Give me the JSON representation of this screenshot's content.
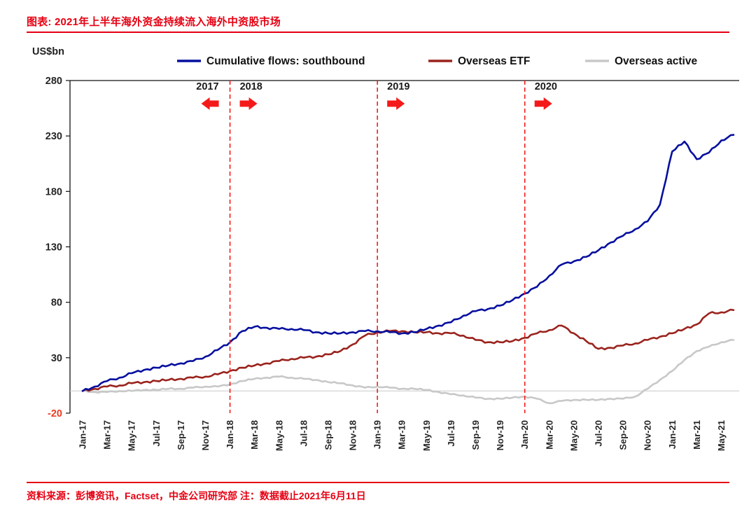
{
  "header": {
    "title": "图表: 2021年上半年海外资金持续流入海外中资股市场"
  },
  "footer": {
    "source": "资料来源：彭博资讯，Factset，中金公司研究部   注：数据截止2021年6月11日"
  },
  "chart_data": {
    "type": "line",
    "title": "2021年上半年海外资金持续流入海外中资股市场",
    "unit_label": "US$bn",
    "ylim": [
      -20,
      280
    ],
    "y_ticks": [
      280,
      230,
      180,
      130,
      80,
      30,
      -20
    ],
    "grid": "zero-line-only",
    "legend_position": "top",
    "months": [
      "Jan-17",
      "Feb-17",
      "Mar-17",
      "Apr-17",
      "May-17",
      "Jun-17",
      "Jul-17",
      "Aug-17",
      "Sep-17",
      "Oct-17",
      "Nov-17",
      "Dec-17",
      "Jan-18",
      "Feb-18",
      "Mar-18",
      "Apr-18",
      "May-18",
      "Jun-18",
      "Jul-18",
      "Aug-18",
      "Sep-18",
      "Oct-18",
      "Nov-18",
      "Dec-18",
      "Jan-19",
      "Feb-19",
      "Mar-19",
      "Apr-19",
      "May-19",
      "Jun-19",
      "Jul-19",
      "Aug-19",
      "Sep-19",
      "Oct-19",
      "Nov-19",
      "Dec-19",
      "Jan-20",
      "Feb-20",
      "Mar-20",
      "Apr-20",
      "May-20",
      "Jun-20",
      "Jul-20",
      "Aug-20",
      "Sep-20",
      "Oct-20",
      "Nov-20",
      "Dec-20",
      "Jan-21",
      "Feb-21",
      "Mar-21",
      "Apr-21",
      "May-21",
      "Jun-21"
    ],
    "x_tick_labels": [
      "Jan-17",
      "Mar-17",
      "May-17",
      "Jul-17",
      "Sep-17",
      "Nov-17",
      "Jan-18",
      "Mar-18",
      "May-18",
      "Jul-18",
      "Sep-18",
      "Nov-18",
      "Jan-19",
      "Mar-19",
      "May-19",
      "Jul-19",
      "Sep-19",
      "Nov-19",
      "Jan-20",
      "Mar-20",
      "May-20",
      "Jul-20",
      "Sep-20",
      "Nov-20",
      "Jan-21",
      "Mar-21",
      "May-21"
    ],
    "series": [
      {
        "name": "Cumulative flows: southbound",
        "color": "#050f9e",
        "values": [
          0,
          4,
          9,
          12,
          16,
          19,
          21,
          23,
          25,
          27,
          31,
          37,
          44,
          54,
          58,
          57,
          56,
          56,
          55,
          53,
          52,
          52,
          53,
          54,
          54,
          53,
          52,
          53,
          56,
          59,
          62,
          68,
          72,
          74,
          77,
          82,
          88,
          94,
          104,
          114,
          117,
          121,
          127,
          134,
          140,
          146,
          153,
          168,
          216,
          225,
          209,
          215,
          226,
          231
        ]
      },
      {
        "name": "Overseas ETF",
        "color": "#9a231d",
        "values": [
          0,
          2,
          4,
          5,
          7,
          8,
          9,
          10,
          11,
          12,
          13,
          15,
          18,
          21,
          23,
          25,
          27,
          29,
          30,
          31,
          33,
          36,
          42,
          50,
          53,
          54,
          54,
          53,
          53,
          52,
          52,
          50,
          46,
          44,
          44,
          45,
          48,
          52,
          55,
          59,
          52,
          45,
          38,
          39,
          41,
          43,
          46,
          49,
          52,
          56,
          60,
          70,
          71,
          73
        ]
      },
      {
        "name": "Overseas active",
        "color": "#c8c8c8",
        "values": [
          0,
          -1,
          -1,
          0,
          0,
          1,
          1,
          2,
          2,
          3,
          4,
          4,
          6,
          9,
          11,
          12,
          13,
          12,
          11,
          10,
          8,
          7,
          5,
          3,
          4,
          3,
          2,
          2,
          1,
          -1,
          -3,
          -4,
          -6,
          -7,
          -7,
          -6,
          -5,
          -7,
          -11,
          -9,
          -8,
          -8,
          -8,
          -7,
          -7,
          -5,
          2,
          10,
          18,
          28,
          36,
          40,
          44,
          46
        ]
      }
    ],
    "event_lines": [
      {
        "month": "Jan-18",
        "index": 12
      },
      {
        "month": "Jan-19",
        "index": 24
      },
      {
        "month": "Jan-20",
        "index": 36
      }
    ],
    "year_annotations": [
      {
        "label": "2017",
        "anchor": "Jan-18",
        "side": "left",
        "arrow": "left"
      },
      {
        "label": "2018",
        "anchor": "Jan-18",
        "side": "right",
        "arrow": "right"
      },
      {
        "label": "2019",
        "anchor": "Jan-19",
        "side": "right",
        "arrow": "right"
      },
      {
        "label": "2020",
        "anchor": "Jan-20",
        "side": "right",
        "arrow": "right"
      }
    ],
    "colors": {
      "accent_red": "#e60012",
      "dashed_line": "#f51a1a",
      "arrow": "#f51a1a",
      "axis": "#111111",
      "tick_text": "#262626",
      "negative_tick": "#ee3b24",
      "zero_line": "#cfcfcf",
      "legend_text": "#111111"
    }
  }
}
